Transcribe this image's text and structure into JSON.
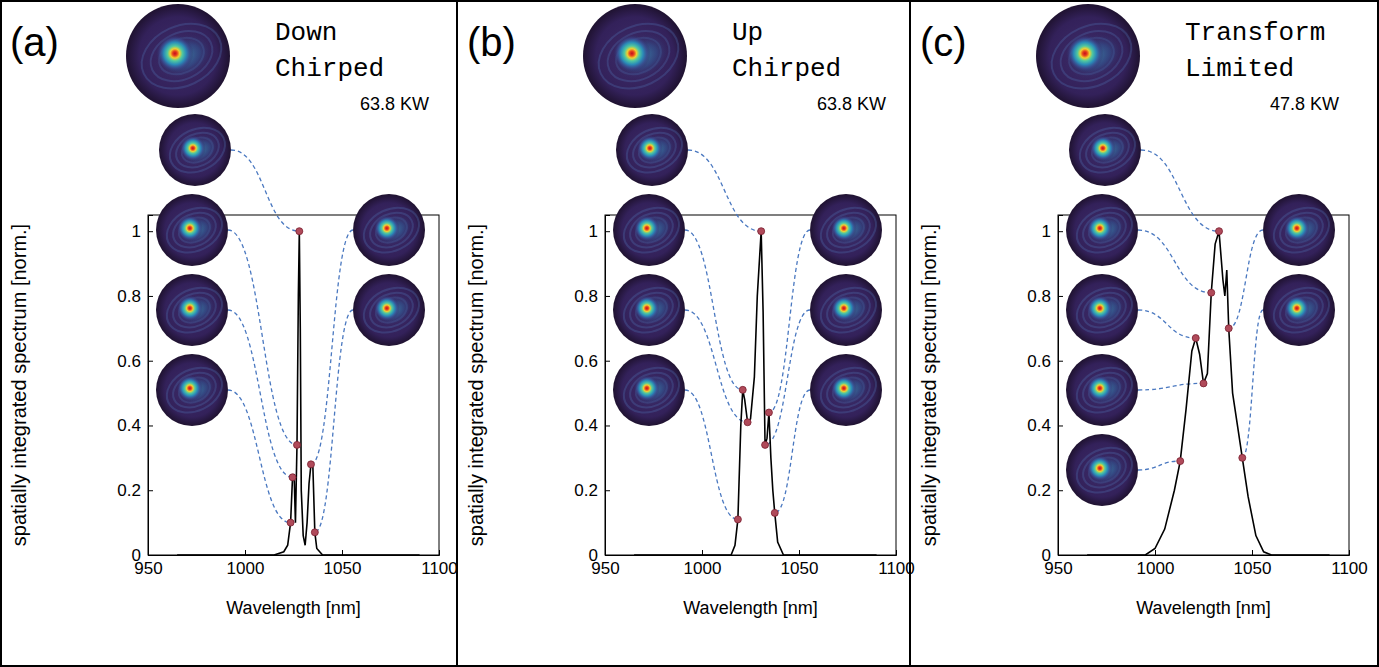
{
  "chart_data": [
    {
      "type": "line",
      "label": "(a)",
      "title": "Down Chirped",
      "annotation": "63.8 KW",
      "x_label": "Wavelength [nm]",
      "y_label": "spatially integrated spectrum [norm.]",
      "xlim": [
        950,
        1100
      ],
      "xticks": [
        950,
        1000,
        1050,
        1100
      ],
      "ylim": [
        0,
        1.05
      ],
      "yticks": [
        0,
        0.2,
        0.4,
        0.6,
        0.8,
        1
      ],
      "series": [
        {
          "type": "line",
          "color": "#000000",
          "x": [
            965,
            1015,
            1020,
            1022,
            1023.5,
            1024.5,
            1025.3,
            1026,
            1026.8,
            1027.5,
            1028,
            1028.5,
            1029,
            1030,
            1031,
            1032,
            1033,
            1034,
            1035,
            1036,
            1037,
            1040,
            1090
          ],
          "values": [
            0,
            0,
            0.01,
            0.03,
            0.1,
            0.24,
            0.25,
            0.1,
            0.34,
            0.8,
            1,
            0.7,
            0.2,
            0.06,
            0.03,
            0.1,
            0.22,
            0.28,
            0.27,
            0.07,
            0.02,
            0,
            0
          ]
        },
        {
          "type": "scatter",
          "marker": "circle",
          "color": "#b04a5a",
          "x": [
            1023.5,
            1024.5,
            1026.8,
            1028,
            1034,
            1036
          ],
          "values": [
            0.1,
            0.24,
            0.34,
            1,
            0.28,
            0.07
          ]
        }
      ]
    },
    {
      "type": "line",
      "label": "(b)",
      "title": "Up Chirped",
      "annotation": "63.8 KW",
      "x_label": "Wavelength [nm]",
      "y_label": "spatially integrated spectrum [norm.]",
      "xlim": [
        950,
        1100
      ],
      "xticks": [
        950,
        1000,
        1050,
        1100
      ],
      "ylim": [
        0,
        1.05
      ],
      "yticks": [
        0,
        0.2,
        0.4,
        0.6,
        0.8,
        1
      ],
      "series": [
        {
          "type": "line",
          "color": "#000000",
          "x": [
            965,
            1015,
            1017,
            1018.5,
            1020,
            1021,
            1022,
            1023.5,
            1025,
            1027,
            1028.5,
            1030.5,
            1031.5,
            1032.5,
            1033.5,
            1034.5,
            1035.5,
            1036.5,
            1037.5,
            1039,
            1042,
            1090
          ],
          "values": [
            0,
            0,
            0.03,
            0.11,
            0.4,
            0.51,
            0.48,
            0.41,
            0.42,
            0.55,
            0.8,
            1,
            0.75,
            0.34,
            0.36,
            0.44,
            0.3,
            0.2,
            0.13,
            0.04,
            0,
            0
          ]
        },
        {
          "type": "scatter",
          "marker": "circle",
          "color": "#b04a5a",
          "x": [
            1018.5,
            1021,
            1023.5,
            1030.5,
            1032.5,
            1034.5,
            1037.5
          ],
          "values": [
            0.11,
            0.51,
            0.41,
            1,
            0.34,
            0.44,
            0.13
          ]
        }
      ]
    },
    {
      "type": "line",
      "label": "(c)",
      "title": "Transform Limited",
      "annotation": "47.8 KW",
      "x_label": "Wavelength [nm]",
      "y_label": "spatially integrated spectrum [norm.]",
      "xlim": [
        950,
        1100
      ],
      "xticks": [
        950,
        1000,
        1050,
        1100
      ],
      "ylim": [
        0,
        1.05
      ],
      "yticks": [
        0,
        0.2,
        0.4,
        0.6,
        0.8,
        1
      ],
      "series": [
        {
          "type": "line",
          "color": "#000000",
          "x": [
            965,
            995,
            1000,
            1005,
            1010,
            1013,
            1016,
            1019,
            1021,
            1023,
            1025,
            1027,
            1029,
            1031,
            1033,
            1035,
            1036,
            1037,
            1038,
            1040,
            1043,
            1045,
            1048,
            1052,
            1056,
            1060,
            1090
          ],
          "values": [
            0,
            0,
            0.02,
            0.08,
            0.2,
            0.29,
            0.45,
            0.63,
            0.67,
            0.62,
            0.53,
            0.56,
            0.81,
            0.96,
            1,
            0.85,
            0.8,
            0.88,
            0.7,
            0.5,
            0.38,
            0.3,
            0.18,
            0.06,
            0.01,
            0,
            0
          ]
        },
        {
          "type": "scatter",
          "marker": "circle",
          "color": "#b04a5a",
          "x": [
            1013,
            1021,
            1025,
            1029,
            1033,
            1038,
            1045
          ],
          "values": [
            0.29,
            0.67,
            0.53,
            0.81,
            1,
            0.7,
            0.3
          ]
        }
      ]
    }
  ]
}
